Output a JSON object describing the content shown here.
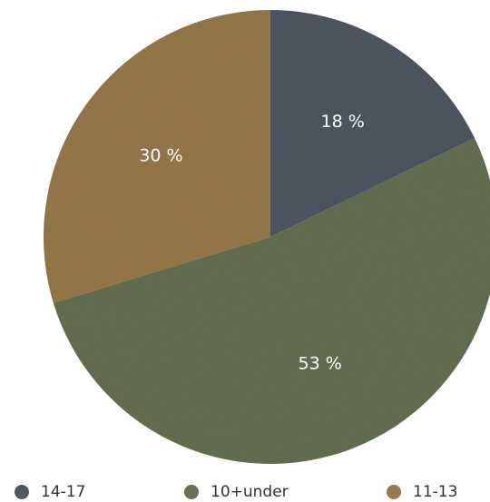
{
  "chart_data": {
    "type": "pie",
    "slices": [
      {
        "label": "14-17",
        "value": 18,
        "display": "18 %",
        "color": "#4f5864"
      },
      {
        "label": "10+under",
        "value": 53,
        "display": "53 %",
        "color": "#667152"
      },
      {
        "label": "11-13",
        "value": 30,
        "display": "30 %",
        "color": "#987a4c"
      }
    ],
    "legend_position": "bottom",
    "start_angle_deg": 0,
    "direction": "clockwise"
  }
}
